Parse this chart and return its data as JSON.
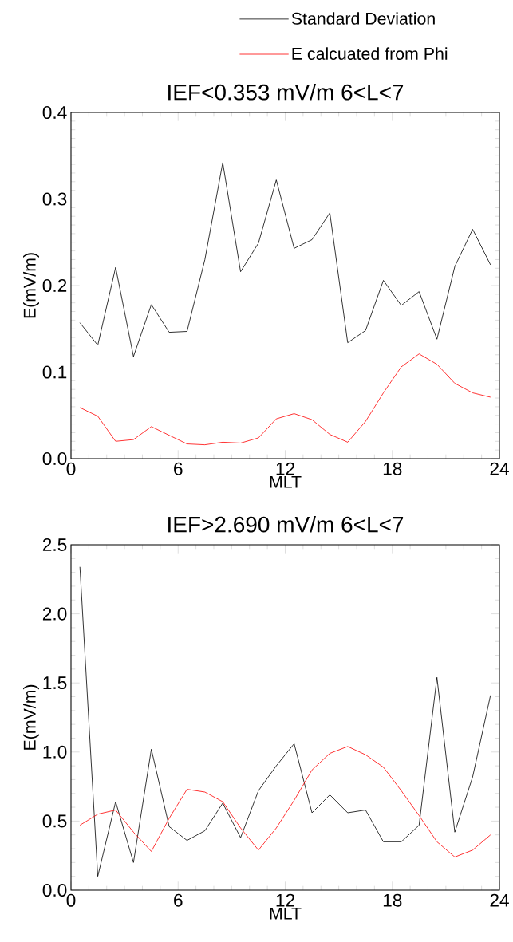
{
  "chart_data": [
    {
      "type": "line",
      "title": "IEF<0.353 mV/m 6<L<7",
      "xlabel": "MLT",
      "ylabel": "E(mV/m)",
      "legend": "top",
      "line_style": "solid",
      "grid": false,
      "x": [
        0.5,
        1.5,
        2.5,
        3.5,
        4.5,
        5.5,
        6.5,
        7.5,
        8.5,
        9.5,
        10.5,
        11.5,
        12.5,
        13.5,
        14.5,
        15.5,
        16.5,
        17.5,
        18.5,
        19.5,
        20.5,
        21.5,
        22.5,
        23.5
      ],
      "xlim": [
        0,
        24
      ],
      "xticks": [
        0,
        6,
        12,
        18,
        24
      ],
      "ylim": [
        0,
        0.4
      ],
      "yticks": [
        {
          "value": 0,
          "label": "0.0"
        },
        {
          "value": 0.1,
          "label": "0.1"
        },
        {
          "value": 0.2,
          "label": "0.2"
        },
        {
          "value": 0.3,
          "label": "0.3"
        },
        {
          "value": 0.4,
          "label": "0.4"
        }
      ],
      "series": [
        {
          "name": "Standard Deviation",
          "color": "#000000",
          "values": [
            0.157,
            0.131,
            0.221,
            0.118,
            0.178,
            0.146,
            0.147,
            0.23,
            0.342,
            0.216,
            0.249,
            0.322,
            0.243,
            0.253,
            0.284,
            0.134,
            0.148,
            0.206,
            0.177,
            0.193,
            0.138,
            0.222,
            0.265,
            0.224
          ]
        },
        {
          "name": "E calcuated from Phi",
          "color": "#ff0000",
          "values": [
            0.059,
            0.049,
            0.02,
            0.022,
            0.037,
            0.027,
            0.017,
            0.016,
            0.019,
            0.018,
            0.024,
            0.046,
            0.052,
            0.045,
            0.028,
            0.019,
            0.043,
            0.076,
            0.106,
            0.121,
            0.109,
            0.087,
            0.076,
            0.071
          ]
        }
      ]
    },
    {
      "type": "line",
      "title": "IEF>2.690 mV/m 6<L<7",
      "xlabel": "MLT",
      "ylabel": "E(mV/m)",
      "line_style": "solid",
      "grid": false,
      "x": [
        0.5,
        1.5,
        2.5,
        3.5,
        4.5,
        5.5,
        6.5,
        7.5,
        8.5,
        9.5,
        10.5,
        11.5,
        12.5,
        13.5,
        14.5,
        15.5,
        16.5,
        17.5,
        18.5,
        19.5,
        20.5,
        21.5,
        22.5,
        23.5
      ],
      "xlim": [
        0,
        24
      ],
      "xticks": [
        0,
        6,
        12,
        18,
        24
      ],
      "ylim": [
        0,
        2.5
      ],
      "yticks": [
        {
          "value": 0,
          "label": "0.0"
        },
        {
          "value": 0.5,
          "label": "0.5"
        },
        {
          "value": 1,
          "label": "1.0"
        },
        {
          "value": 1.5,
          "label": "1.5"
        },
        {
          "value": 2,
          "label": "2.0"
        },
        {
          "value": 2.5,
          "label": "2.5"
        }
      ],
      "series": [
        {
          "color": "#000000",
          "values": [
            2.34,
            0.1,
            0.64,
            0.2,
            1.02,
            0.46,
            0.36,
            0.43,
            0.63,
            0.38,
            0.72,
            0.9,
            1.06,
            0.56,
            0.69,
            0.56,
            0.58,
            0.35,
            0.35,
            0.47,
            1.54,
            0.42,
            0.82,
            1.41
          ]
        },
        {
          "color": "#ff0000",
          "values": [
            0.47,
            0.55,
            0.58,
            0.42,
            0.28,
            0.52,
            0.73,
            0.71,
            0.64,
            0.45,
            0.29,
            0.45,
            0.65,
            0.87,
            0.99,
            1.04,
            0.98,
            0.89,
            0.72,
            0.54,
            0.35,
            0.24,
            0.29,
            0.4
          ]
        }
      ]
    }
  ]
}
